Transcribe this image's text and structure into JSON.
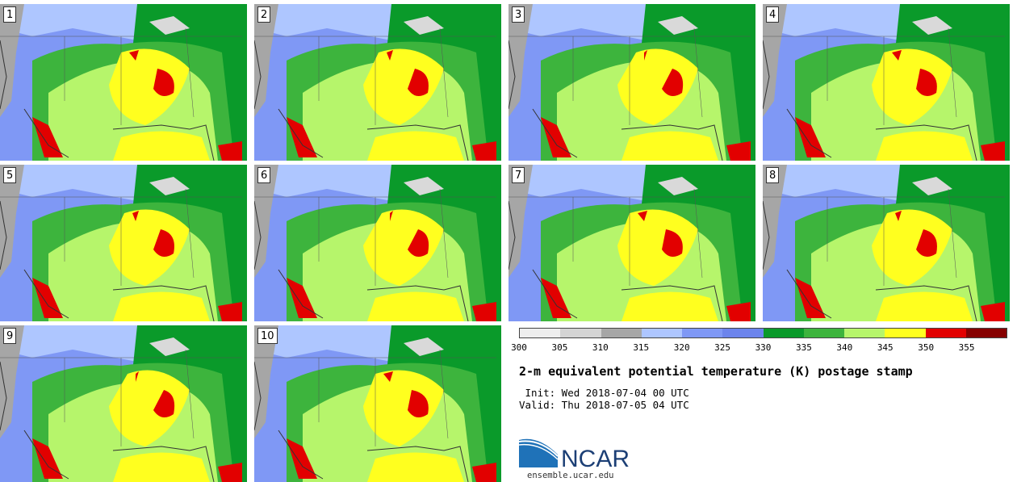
{
  "panels": [
    {
      "label": "1"
    },
    {
      "label": "2"
    },
    {
      "label": "3"
    },
    {
      "label": "4"
    },
    {
      "label": "5"
    },
    {
      "label": "6"
    },
    {
      "label": "7"
    },
    {
      "label": "8"
    },
    {
      "label": "9"
    },
    {
      "label": "10"
    }
  ],
  "colorbar": {
    "colors": [
      "#eeeeee",
      "#d4d4d4",
      "#a6a6a6",
      "#aec6ff",
      "#7f98f5",
      "#6c84ec",
      "#0a9a2a",
      "#3db43d",
      "#b6f56b",
      "#ffff1f",
      "#e20000",
      "#860000"
    ],
    "ticks": [
      "300",
      "305",
      "310",
      "315",
      "320",
      "325",
      "330",
      "335",
      "340",
      "345",
      "350",
      "355"
    ]
  },
  "title": "2-m equivalent potential temperature (K) postage stamp",
  "init": " Init: Wed 2018-07-04 00 UTC",
  "valid": "Valid: Thu 2018-07-05 04 UTC",
  "logo": {
    "text": "NCAR",
    "url": "ensemble.ucar.edu"
  }
}
